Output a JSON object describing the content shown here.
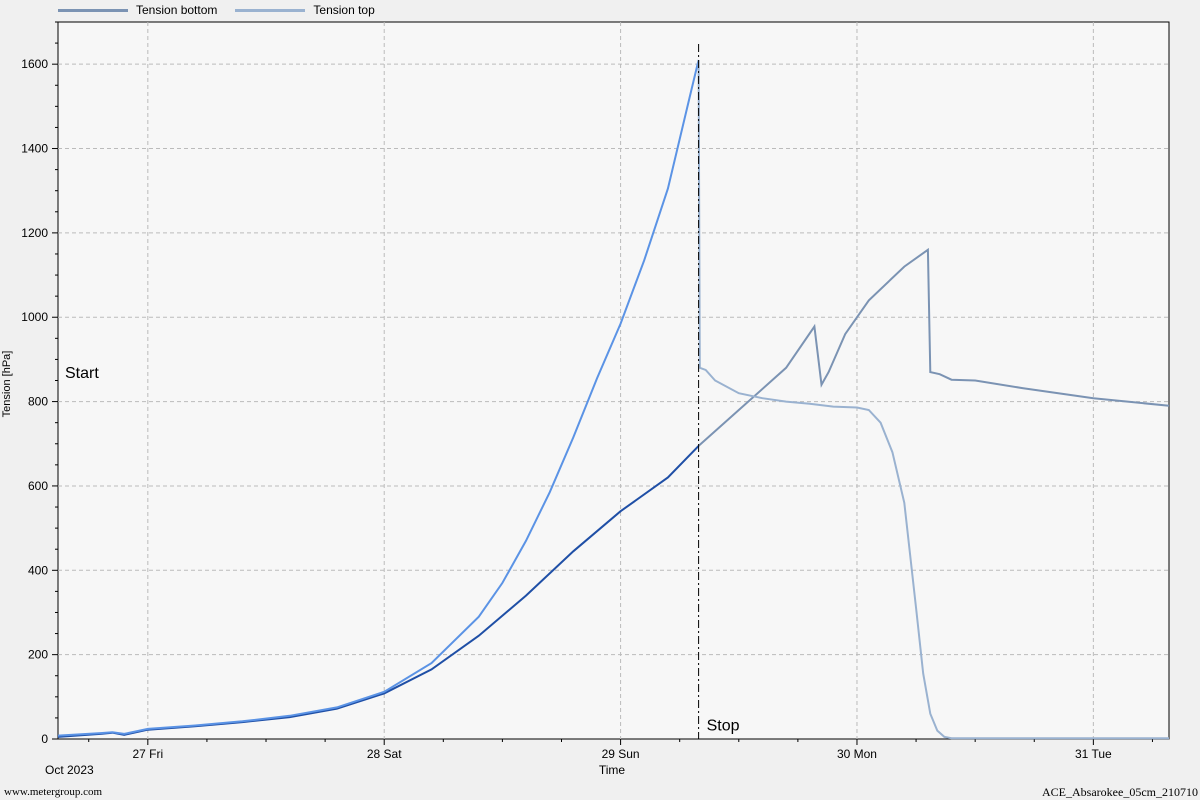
{
  "chart_data": {
    "type": "line",
    "ylabel": "Tension [hPa]",
    "xlabel": "Time",
    "x_unit": "days",
    "x_tick_labels": [
      {
        "at": 1,
        "label": "27 Fri"
      },
      {
        "at": 2,
        "label": "28 Sat"
      },
      {
        "at": 3,
        "label": "29 Sun"
      },
      {
        "at": 4,
        "label": "30 Mon"
      },
      {
        "at": 5,
        "label": "31 Tue"
      }
    ],
    "date_label": "Oct 2023",
    "xlim": [
      0.62,
      5.32
    ],
    "ylim": [
      0,
      1700
    ],
    "y_ticks": [
      0,
      200,
      400,
      600,
      800,
      1000,
      1200,
      1400,
      1600
    ],
    "grid": true,
    "legend_position": "top-left",
    "annotations": [
      {
        "text": "Start",
        "x": 0.62,
        "y": 870
      },
      {
        "text": "Stop",
        "x": 3.33,
        "y": 20
      }
    ],
    "stop_line_x": 3.33,
    "series": [
      {
        "name": "Tension bottom",
        "color": "#1f4fa6",
        "color_after_stop": "#7b93b3",
        "points": [
          [
            0.62,
            5
          ],
          [
            0.8,
            12
          ],
          [
            0.85,
            15
          ],
          [
            0.9,
            10
          ],
          [
            1.0,
            22
          ],
          [
            1.2,
            30
          ],
          [
            1.4,
            40
          ],
          [
            1.6,
            52
          ],
          [
            1.8,
            72
          ],
          [
            2.0,
            108
          ],
          [
            2.2,
            165
          ],
          [
            2.4,
            245
          ],
          [
            2.6,
            340
          ],
          [
            2.8,
            445
          ],
          [
            3.0,
            540
          ],
          [
            3.2,
            620
          ],
          [
            3.33,
            695
          ],
          [
            3.5,
            780
          ],
          [
            3.7,
            880
          ],
          [
            3.82,
            978
          ],
          [
            3.85,
            840
          ],
          [
            3.88,
            870
          ],
          [
            3.95,
            960
          ],
          [
            4.05,
            1040
          ],
          [
            4.2,
            1120
          ],
          [
            4.3,
            1160
          ],
          [
            4.31,
            870
          ],
          [
            4.35,
            865
          ],
          [
            4.4,
            852
          ],
          [
            4.5,
            850
          ],
          [
            4.7,
            832
          ],
          [
            5.0,
            808
          ],
          [
            5.32,
            790
          ]
        ]
      },
      {
        "name": "Tension top",
        "color": "#5b93e5",
        "color_after_stop": "#9ab2d0",
        "points": [
          [
            0.62,
            8
          ],
          [
            0.8,
            14
          ],
          [
            0.85,
            16
          ],
          [
            0.9,
            12
          ],
          [
            1.0,
            24
          ],
          [
            1.2,
            32
          ],
          [
            1.4,
            42
          ],
          [
            1.6,
            55
          ],
          [
            1.8,
            75
          ],
          [
            2.0,
            112
          ],
          [
            2.2,
            180
          ],
          [
            2.4,
            290
          ],
          [
            2.5,
            370
          ],
          [
            2.6,
            470
          ],
          [
            2.7,
            585
          ],
          [
            2.8,
            715
          ],
          [
            2.9,
            855
          ],
          [
            3.0,
            985
          ],
          [
            3.1,
            1135
          ],
          [
            3.2,
            1305
          ],
          [
            3.3,
            1540
          ],
          [
            3.33,
            1610
          ],
          [
            3.335,
            880
          ],
          [
            3.36,
            875
          ],
          [
            3.4,
            850
          ],
          [
            3.5,
            820
          ],
          [
            3.6,
            808
          ],
          [
            3.7,
            800
          ],
          [
            3.8,
            795
          ],
          [
            3.9,
            788
          ],
          [
            4.0,
            786
          ],
          [
            4.05,
            780
          ],
          [
            4.1,
            750
          ],
          [
            4.15,
            680
          ],
          [
            4.2,
            560
          ],
          [
            4.25,
            310
          ],
          [
            4.28,
            155
          ],
          [
            4.31,
            60
          ],
          [
            4.34,
            20
          ],
          [
            4.37,
            5
          ],
          [
            4.4,
            2
          ],
          [
            5.32,
            2
          ]
        ]
      }
    ]
  },
  "footer": {
    "left": "www.metergroup.com",
    "right": "ACE_Absarokee_05cm_210710"
  }
}
